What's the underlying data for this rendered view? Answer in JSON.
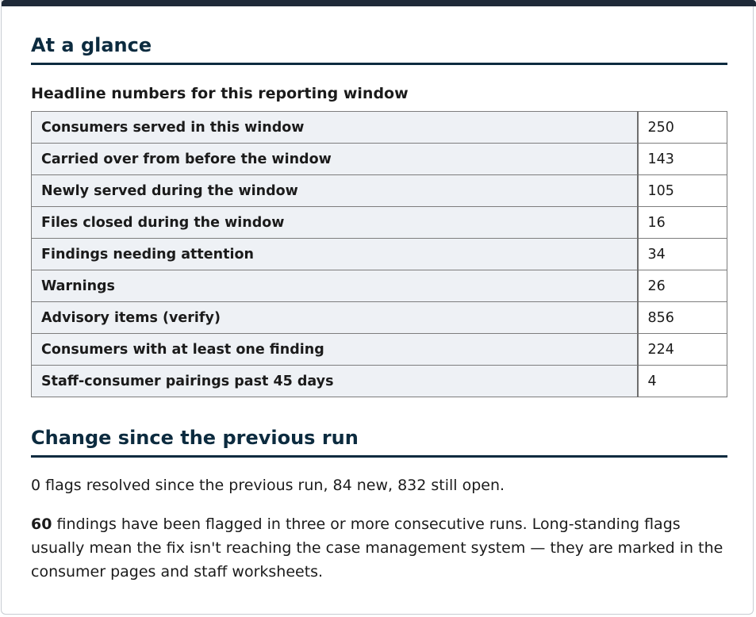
{
  "at_a_glance": {
    "title": "At a glance",
    "subtitle": "Headline numbers for this reporting window",
    "rows": [
      {
        "label": "Consumers served in this window",
        "value": "250"
      },
      {
        "label": "Carried over from before the window",
        "value": "143"
      },
      {
        "label": "Newly served during the window",
        "value": "105"
      },
      {
        "label": "Files closed during the window",
        "value": "16"
      },
      {
        "label": "Findings needing attention",
        "value": "34"
      },
      {
        "label": "Warnings",
        "value": "26"
      },
      {
        "label": "Advisory items (verify)",
        "value": "856"
      },
      {
        "label": "Consumers with at least one finding",
        "value": "224"
      },
      {
        "label": "Staff-consumer pairings past 45 days",
        "value": "4"
      }
    ]
  },
  "change": {
    "title": "Change since the previous run",
    "summary": "0 flags resolved since the previous run, 84 new, 832 still open.",
    "persistent_count": "60",
    "persistent_text": " findings have been flagged in three or more consecutive runs. Long-standing flags usually mean the fix isn't reaching the case management system — they are marked in the consumer pages and staff worksheets."
  },
  "colors": {
    "top_bar": "#1f2a38",
    "heading": "#0c2b3f",
    "label_cell_bg": "#eef1f5"
  }
}
